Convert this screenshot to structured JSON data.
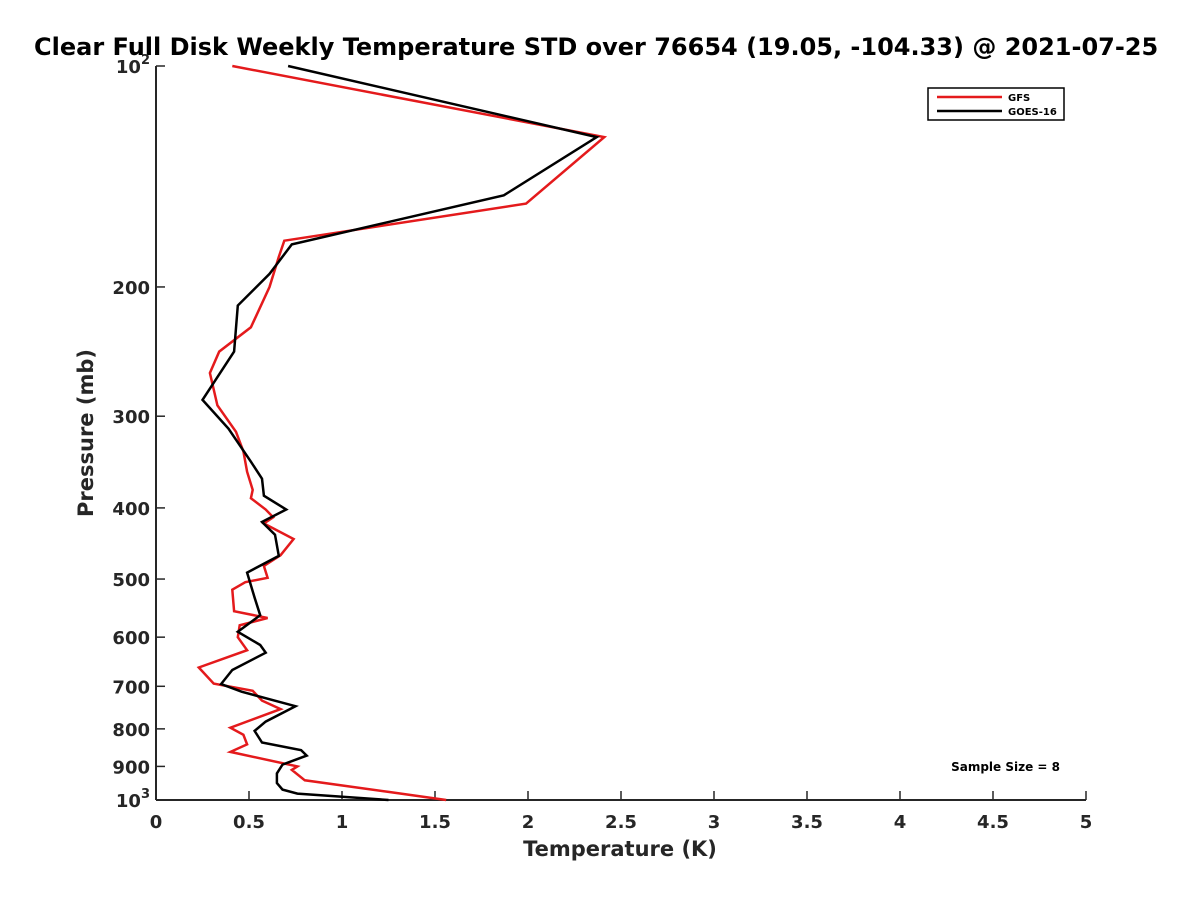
{
  "chart_data": {
    "type": "line",
    "title": "Clear Full Disk Weekly Temperature STD over 76654 (19.05, -104.33) @ 2021-07-25",
    "xlabel": "Temperature (K)",
    "ylabel": "Pressure (mb)",
    "xlim": [
      0,
      5
    ],
    "ylim": [
      100,
      1000
    ],
    "yscale": "log",
    "y_reversed": true,
    "grid": false,
    "xticks": [
      0,
      0.5,
      1,
      1.5,
      2,
      2.5,
      3,
      3.5,
      4,
      4.5,
      5
    ],
    "xtick_labels": [
      "0",
      "0.5",
      "1",
      "1.5",
      "2",
      "2.5",
      "3",
      "3.5",
      "4",
      "4.5",
      "5"
    ],
    "yticks": [
      {
        "value": 100,
        "label": "10",
        "sup": "2"
      },
      {
        "value": 200,
        "label": "200",
        "sup": ""
      },
      {
        "value": 300,
        "label": "300",
        "sup": ""
      },
      {
        "value": 400,
        "label": "400",
        "sup": ""
      },
      {
        "value": 500,
        "label": "500",
        "sup": ""
      },
      {
        "value": 600,
        "label": "600",
        "sup": ""
      },
      {
        "value": 700,
        "label": "700",
        "sup": ""
      },
      {
        "value": 800,
        "label": "800",
        "sup": ""
      },
      {
        "value": 900,
        "label": "900",
        "sup": ""
      },
      {
        "value": 1000,
        "label": "10",
        "sup": "3"
      }
    ],
    "legend_position": "top-right",
    "annotation": "Sample Size = 8",
    "series": [
      {
        "name": "GFS",
        "color": "#e41a1c",
        "points": [
          [
            0.41,
            100
          ],
          [
            2.41,
            125
          ],
          [
            1.99,
            154
          ],
          [
            0.69,
            173
          ],
          [
            0.66,
            182
          ],
          [
            0.61,
            200
          ],
          [
            0.51,
            227
          ],
          [
            0.34,
            245
          ],
          [
            0.29,
            262
          ],
          [
            0.33,
            290
          ],
          [
            0.43,
            315
          ],
          [
            0.47,
            335
          ],
          [
            0.49,
            357
          ],
          [
            0.52,
            378
          ],
          [
            0.51,
            388
          ],
          [
            0.59,
            402
          ],
          [
            0.63,
            412
          ],
          [
            0.58,
            420
          ],
          [
            0.74,
            441
          ],
          [
            0.67,
            464
          ],
          [
            0.58,
            480
          ],
          [
            0.6,
            498
          ],
          [
            0.48,
            505
          ],
          [
            0.41,
            517
          ],
          [
            0.42,
            553
          ],
          [
            0.6,
            565
          ],
          [
            0.45,
            578
          ],
          [
            0.44,
            600
          ],
          [
            0.49,
            625
          ],
          [
            0.23,
            660
          ],
          [
            0.31,
            694
          ],
          [
            0.52,
            710
          ],
          [
            0.57,
            732
          ],
          [
            0.67,
            752
          ],
          [
            0.4,
            797
          ],
          [
            0.47,
            815
          ],
          [
            0.49,
            840
          ],
          [
            0.4,
            860
          ],
          [
            0.76,
            900
          ],
          [
            0.73,
            910
          ],
          [
            0.8,
            940
          ],
          [
            1.25,
            975
          ],
          [
            1.56,
            1000
          ]
        ]
      },
      {
        "name": "GOES-16",
        "color": "#000000",
        "points": [
          [
            0.71,
            100
          ],
          [
            2.37,
            125
          ],
          [
            1.87,
            150
          ],
          [
            0.73,
            175
          ],
          [
            0.61,
            192
          ],
          [
            0.44,
            212
          ],
          [
            0.42,
            245
          ],
          [
            0.25,
            285
          ],
          [
            0.39,
            312
          ],
          [
            0.51,
            346
          ],
          [
            0.57,
            365
          ],
          [
            0.58,
            385
          ],
          [
            0.7,
            402
          ],
          [
            0.57,
            418
          ],
          [
            0.64,
            435
          ],
          [
            0.66,
            465
          ],
          [
            0.49,
            490
          ],
          [
            0.53,
            530
          ],
          [
            0.56,
            560
          ],
          [
            0.44,
            590
          ],
          [
            0.56,
            615
          ],
          [
            0.59,
            630
          ],
          [
            0.41,
            665
          ],
          [
            0.35,
            695
          ],
          [
            0.46,
            712
          ],
          [
            0.75,
            745
          ],
          [
            0.59,
            782
          ],
          [
            0.53,
            805
          ],
          [
            0.57,
            835
          ],
          [
            0.78,
            855
          ],
          [
            0.81,
            870
          ],
          [
            0.68,
            895
          ],
          [
            0.65,
            920
          ],
          [
            0.65,
            948
          ],
          [
            0.68,
            968
          ],
          [
            0.76,
            980
          ],
          [
            1.25,
            1000
          ]
        ]
      }
    ]
  }
}
